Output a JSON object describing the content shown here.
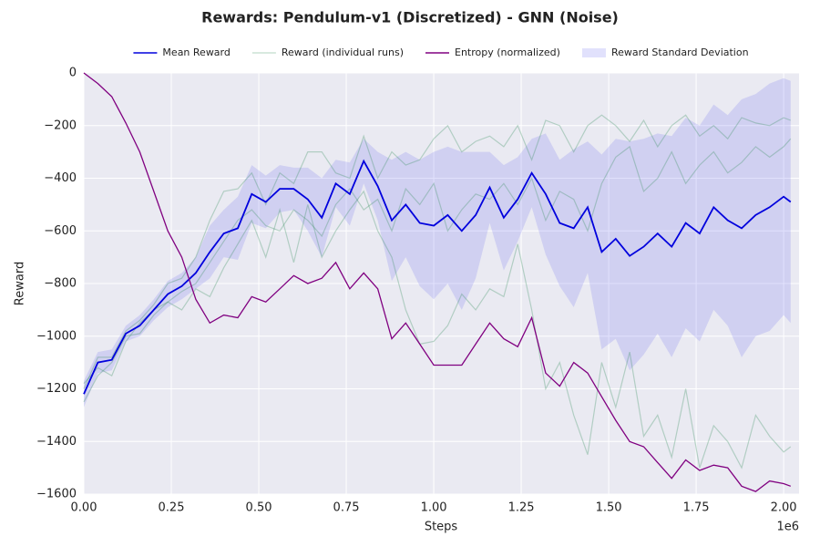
{
  "chart_data": {
    "type": "line",
    "title": "Rewards: Pendulum-v1 (Discretized) - GNN (Noise)",
    "xlabel": "Steps",
    "ylabel": "Reward",
    "x_offset_label": "1e6",
    "xlim": [
      0,
      2.044
    ],
    "ylim": [
      -1600,
      0
    ],
    "xticks": [
      {
        "value": 0,
        "label": "0.00"
      },
      {
        "value": 0.25,
        "label": "0.25"
      },
      {
        "value": 0.5,
        "label": "0.50"
      },
      {
        "value": 0.75,
        "label": "0.75"
      },
      {
        "value": 1,
        "label": "1.00"
      },
      {
        "value": 1.25,
        "label": "1.25"
      },
      {
        "value": 1.5,
        "label": "1.50"
      },
      {
        "value": 1.75,
        "label": "1.75"
      },
      {
        "value": 2,
        "label": "2.00"
      }
    ],
    "yticks": [
      0,
      {
        "value": -200,
        "label": "−200"
      },
      {
        "value": -400,
        "label": "−400"
      },
      {
        "value": -600,
        "label": "−600"
      },
      {
        "value": -800,
        "label": "−800"
      },
      {
        "value": -1000,
        "label": "−1000"
      },
      {
        "value": -1200,
        "label": "−1200"
      },
      {
        "value": -1400,
        "label": "−1400"
      },
      {
        "value": -1600,
        "label": "−1600"
      }
    ],
    "grid": true,
    "legend": "top",
    "x": [
      0,
      0.04,
      0.08,
      0.12,
      0.16,
      0.2,
      0.24,
      0.28,
      0.32,
      0.36,
      0.4,
      0.44,
      0.48,
      0.52,
      0.56,
      0.6,
      0.64,
      0.68,
      0.72,
      0.76,
      0.8,
      0.84,
      0.88,
      0.92,
      0.96,
      1,
      1.04,
      1.08,
      1.12,
      1.16,
      1.2,
      1.24,
      1.28,
      1.32,
      1.36,
      1.4,
      1.44,
      1.48,
      1.52,
      1.56,
      1.6,
      1.64,
      1.68,
      1.72,
      1.76,
      1.8,
      1.84,
      1.88,
      1.92,
      1.96,
      2,
      2.02
    ],
    "series": [
      {
        "name": "Mean Reward",
        "color": "#0000dd",
        "values": [
          -1220,
          -1100,
          -1090,
          -990,
          -960,
          -900,
          -840,
          -810,
          -760,
          -680,
          -610,
          -590,
          -460,
          -490,
          -440,
          -440,
          -480,
          -550,
          -420,
          -460,
          -335,
          -430,
          -560,
          -500,
          -570,
          -580,
          -540,
          -600,
          -540,
          -435,
          -550,
          -480,
          -380,
          -460,
          -570,
          -590,
          -510,
          -680,
          -630,
          -695,
          -660,
          -610,
          -660,
          -570,
          -610,
          -510,
          -560,
          -590,
          -540,
          -510,
          -470,
          -490
        ]
      },
      {
        "name": "Reward (individual runs)",
        "color": "#2e8b57",
        "runs": [
          [
            -1200,
            -1080,
            -1080,
            -980,
            -940,
            -880,
            -800,
            -780,
            -700,
            -560,
            -450,
            -440,
            -380,
            -500,
            -380,
            -420,
            -300,
            -300,
            -380,
            -400,
            -240,
            -400,
            -300,
            -350,
            -330,
            -250,
            -200,
            -300,
            -260,
            -240,
            -280,
            -200,
            -330,
            -180,
            -200,
            -300,
            -200,
            -160,
            -200,
            -260,
            -180,
            -280,
            -200,
            -160,
            -240,
            -200,
            -250,
            -170,
            -190,
            -200,
            -170,
            -180
          ],
          [
            -1250,
            -1150,
            -1100,
            -1000,
            -990,
            -920,
            -870,
            -900,
            -820,
            -850,
            -740,
            -650,
            -560,
            -700,
            -520,
            -720,
            -500,
            -700,
            -600,
            -520,
            -450,
            -600,
            -700,
            -900,
            -1030,
            -1020,
            -960,
            -840,
            -900,
            -820,
            -850,
            -650,
            -900,
            -1200,
            -1100,
            -1300,
            -1450,
            -1100,
            -1270,
            -1060,
            -1380,
            -1300,
            -1460,
            -1200,
            -1500,
            -1340,
            -1400,
            -1500,
            -1300,
            -1380,
            -1440,
            -1420
          ],
          [
            -1180,
            -1120,
            -1150,
            -1020,
            -950,
            -900,
            -870,
            -830,
            -800,
            -720,
            -640,
            -560,
            -520,
            -580,
            -600,
            -520,
            -560,
            -620,
            -500,
            -440,
            -520,
            -480,
            -600,
            -440,
            -500,
            -420,
            -600,
            -520,
            -460,
            -480,
            -420,
            -500,
            -400,
            -560,
            -450,
            -480,
            -600,
            -420,
            -320,
            -280,
            -450,
            -400,
            -300,
            -420,
            -350,
            -300,
            -380,
            -340,
            -280,
            -320,
            -280,
            -250
          ]
        ]
      },
      {
        "name": "Entropy (normalized)",
        "color": "#800080",
        "values": [
          0,
          -40,
          -90,
          -190,
          -300,
          -450,
          -600,
          -700,
          -860,
          -950,
          -920,
          -930,
          -850,
          -870,
          -820,
          -770,
          -800,
          -780,
          -720,
          -820,
          -760,
          -820,
          -1010,
          -950,
          -1030,
          -1110,
          -1110,
          -1110,
          -1030,
          -950,
          -1010,
          -1040,
          -930,
          -1140,
          -1190,
          -1100,
          -1140,
          -1230,
          -1320,
          -1400,
          -1420,
          -1480,
          -1540,
          -1470,
          -1510,
          -1490,
          -1500,
          -1570,
          -1590,
          -1550,
          -1560,
          -1570
        ]
      },
      {
        "name": "Reward Standard Deviation",
        "color": "#6a6af0",
        "upper": [
          -1170,
          -1060,
          -1050,
          -960,
          -920,
          -860,
          -790,
          -760,
          -700,
          -580,
          -520,
          -470,
          -350,
          -390,
          -350,
          -360,
          -360,
          -400,
          -330,
          -340,
          -250,
          -300,
          -330,
          -300,
          -330,
          -300,
          -280,
          -300,
          -300,
          -300,
          -350,
          -320,
          -250,
          -230,
          -330,
          -290,
          -260,
          -310,
          -250,
          -260,
          -250,
          -230,
          -240,
          -170,
          -200,
          -120,
          -160,
          -100,
          -80,
          -40,
          -20,
          -30
        ],
        "lower": [
          -1270,
          -1140,
          -1130,
          -1020,
          -1000,
          -940,
          -890,
          -860,
          -820,
          -780,
          -700,
          -710,
          -570,
          -590,
          -530,
          -520,
          -600,
          -700,
          -510,
          -580,
          -420,
          -560,
          -790,
          -700,
          -810,
          -860,
          -800,
          -900,
          -780,
          -570,
          -750,
          -640,
          -510,
          -690,
          -810,
          -890,
          -760,
          -1050,
          -1010,
          -1130,
          -1070,
          -990,
          -1080,
          -970,
          -1020,
          -900,
          -960,
          -1080,
          -1000,
          -980,
          -920,
          -950
        ]
      }
    ]
  }
}
